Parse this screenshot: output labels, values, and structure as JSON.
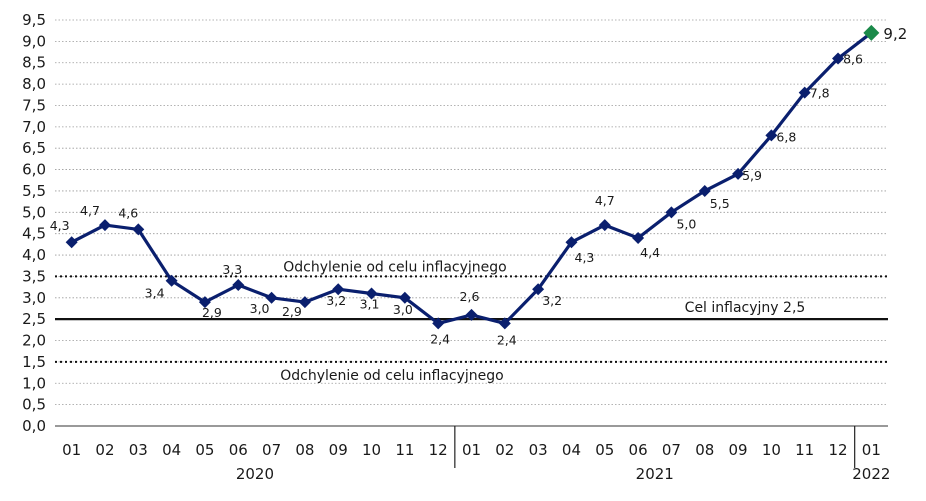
{
  "chart_data": {
    "type": "line",
    "title": "",
    "xlabel": "",
    "ylabel": "",
    "ylim": [
      0,
      9.5
    ],
    "yticks": [
      "0,0",
      "0,5",
      "1,0",
      "1,5",
      "2,0",
      "2,5",
      "3,0",
      "3,5",
      "4,0",
      "4,5",
      "5,0",
      "5,5",
      "6,0",
      "6,5",
      "7,0",
      "7,5",
      "8,0",
      "8,5",
      "9,0",
      "9,5"
    ],
    "categories": [
      "01",
      "02",
      "03",
      "04",
      "05",
      "06",
      "07",
      "08",
      "09",
      "10",
      "11",
      "12",
      "01",
      "02",
      "03",
      "04",
      "05",
      "06",
      "07",
      "08",
      "09",
      "10",
      "11",
      "12",
      "01"
    ],
    "years": [
      {
        "label": "2020",
        "start": 0,
        "end": 11
      },
      {
        "label": "2021",
        "start": 12,
        "end": 23
      },
      {
        "label": "2022",
        "start": 24,
        "end": 24
      }
    ],
    "grid": true,
    "series": [
      {
        "values": [
          4.3,
          4.7,
          4.6,
          3.4,
          2.9,
          3.3,
          3.0,
          2.9,
          3.2,
          3.1,
          3.0,
          2.4,
          2.6,
          2.4,
          3.2,
          4.3,
          4.7,
          4.4,
          5.0,
          5.5,
          5.9,
          6.8,
          7.8,
          8.6,
          9.2
        ],
        "labels": [
          "4,3",
          "4,7",
          "4,6",
          "3,4",
          "2,9",
          "3,3",
          "3,0",
          "2,9",
          "3,2",
          "3,1",
          "3,0",
          "2,4",
          "2,6",
          "2,4",
          "3,2",
          "4,3",
          "4,7",
          "4,4",
          "5,0",
          "5,5",
          "5,9",
          "6,8",
          "7,8",
          "8,6",
          "9,2"
        ],
        "color": "#0a1f6e",
        "highlight_last_color": "#1b8a4a"
      }
    ],
    "reference_lines": [
      {
        "value": 3.5,
        "style": "dotted",
        "label": "Odchylenie od celu inflacyjnego"
      },
      {
        "value": 2.5,
        "style": "solid",
        "label": "Cel inflacyjny 2,5"
      },
      {
        "value": 1.5,
        "style": "dotted",
        "label": "Odchylenie od celu inflacyjnego"
      }
    ]
  }
}
